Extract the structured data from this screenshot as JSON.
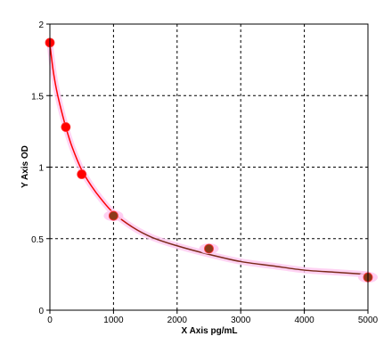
{
  "chart_data": {
    "type": "scatter",
    "title": "",
    "xlabel": "X Axis pg/mL",
    "ylabel": "Y Axis OD",
    "xlim": [
      0,
      5000
    ],
    "ylim": [
      0,
      2
    ],
    "x_ticks": [
      0,
      1000,
      2000,
      3000,
      4000,
      5000
    ],
    "x_tick_labels": [
      "0",
      "1000",
      "2000",
      "3000",
      "4000",
      "5000"
    ],
    "y_ticks": [
      0,
      0.5,
      1,
      1.5,
      2
    ],
    "y_tick_labels": [
      "0",
      "0.5",
      "1",
      "1.5",
      "2"
    ],
    "grid": true,
    "legend": "none",
    "series": [
      {
        "type": "scatter",
        "x": [
          0,
          250,
          500,
          1000,
          2500,
          5000
        ],
        "y": [
          1.87,
          1.28,
          0.95,
          0.66,
          0.43,
          0.23
        ]
      },
      {
        "type": "line",
        "style": "fitted-curve",
        "x": [
          0,
          50,
          100,
          150,
          250,
          350,
          500,
          650,
          800,
          1000,
          1300,
          1600,
          2000,
          2500,
          3000,
          3500,
          4000,
          4500,
          5000
        ],
        "y": [
          1.86,
          1.68,
          1.55,
          1.45,
          1.28,
          1.14,
          0.98,
          0.87,
          0.78,
          0.68,
          0.58,
          0.51,
          0.45,
          0.39,
          0.34,
          0.31,
          0.28,
          0.265,
          0.25
        ]
      }
    ],
    "colors": {
      "point_fill": "#ff0000",
      "point_fill_dark": "#8b3a1a",
      "curve": "#7a2a1a",
      "curve_early": "#ff0000",
      "curve_glow": "#ffc8f0",
      "grid": "#000000",
      "frame": "#000000"
    }
  }
}
